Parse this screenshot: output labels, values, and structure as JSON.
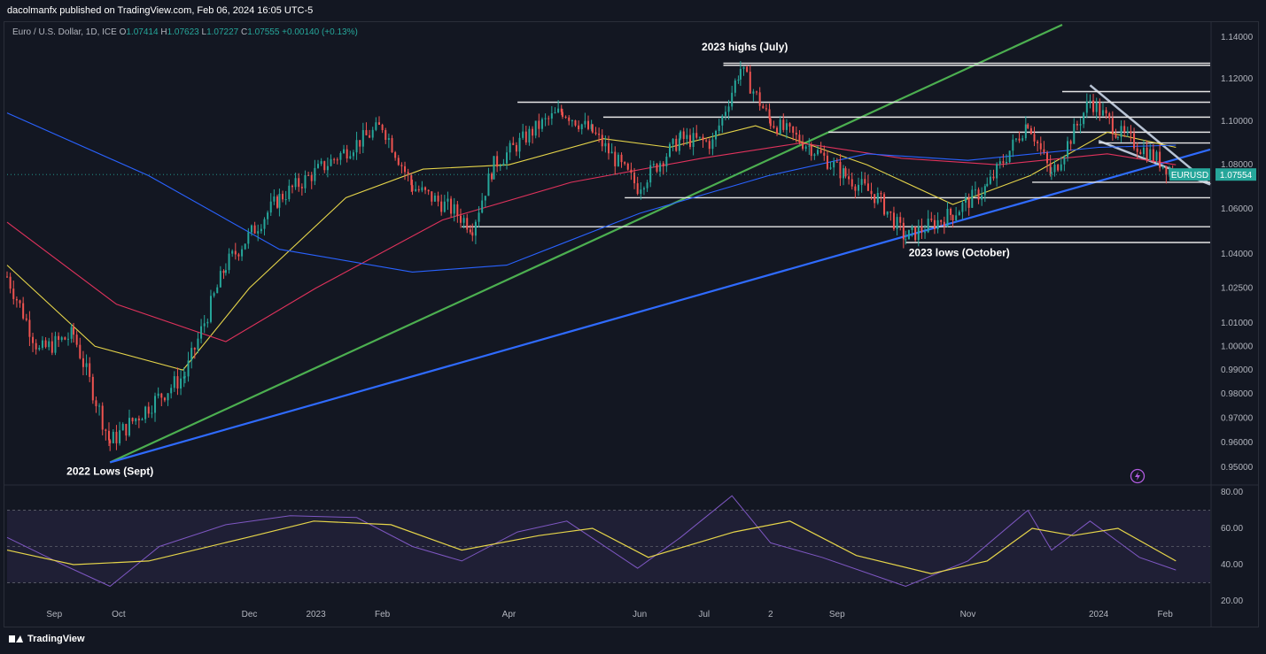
{
  "header": {
    "published": "dacolmanfx published on TradingView.com, Feb 06, 2024 16:05 UTC-5"
  },
  "symbol": {
    "name": "Euro / U.S. Dollar, 1D, ICE",
    "o_label": "O",
    "o_value": "1.07414",
    "h_label": "H",
    "h_value": "1.07623",
    "l_label": "L",
    "l_value": "1.07227",
    "c_label": "C",
    "c_value": "1.07555",
    "change": "+0.00140 (+0.13%)"
  },
  "footer": {
    "brand": "TradingView"
  },
  "colors": {
    "background": "#131722",
    "up": "#26a69a",
    "down": "#ef5350",
    "ma_fast": "#e6d54a",
    "ma_mid": "#e0325c",
    "ma_slow": "#2962ff",
    "rsi": "#7e57c2",
    "rsi_ma": "#e6d54a",
    "trend_green": "#4caf50",
    "trend_blue": "#2f6bff",
    "channel": "#b8c3d4"
  },
  "chart_data": [
    {
      "type": "candlestick",
      "series": [
        {
          "name": "EURUSD",
          "last": 1.07554
        },
        {
          "name": "moving average (yellow)"
        },
        {
          "name": "moving average (red)"
        },
        {
          "name": "moving average (blue)"
        }
      ],
      "price_label": "EURUSD",
      "price_label_value": "1.07554",
      "y_scale": "log",
      "ylim": [
        0.944,
        1.146
      ],
      "y_ticks": [
        "1.14000",
        "1.12000",
        "1.10000",
        "1.08000",
        "1.06000",
        "1.04000",
        "1.02500",
        "1.01000",
        "1.00000",
        "0.99000",
        "0.98000",
        "0.97000",
        "0.96000",
        "0.95000"
      ],
      "x_ticks": [
        "Sep",
        "Oct",
        "Dec",
        "2023",
        "Feb",
        "Apr",
        "Jun",
        "Jul",
        "2",
        "Sep",
        "Nov",
        "2024",
        "Feb"
      ],
      "x_range": [
        "2022-08-10",
        "2024-02-22"
      ],
      "price_path": [
        [
          "2022-08-10",
          1.03
        ],
        [
          "2022-08-25",
          0.998
        ],
        [
          "2022-09-10",
          1.005
        ],
        [
          "2022-09-27",
          0.96
        ],
        [
          "2022-10-15",
          0.975
        ],
        [
          "2022-11-01",
          0.988
        ],
        [
          "2022-11-20",
          1.035
        ],
        [
          "2022-12-15",
          1.065
        ],
        [
          "2023-01-20",
          1.09
        ],
        [
          "2023-02-01",
          1.098
        ],
        [
          "2023-02-15",
          1.07
        ],
        [
          "2023-03-05",
          1.06
        ],
        [
          "2023-03-15",
          1.052
        ],
        [
          "2023-03-25",
          1.08
        ],
        [
          "2023-04-15",
          1.098
        ],
        [
          "2023-04-26",
          1.105
        ],
        [
          "2023-05-10",
          1.095
        ],
        [
          "2023-05-31",
          1.07
        ],
        [
          "2023-06-20",
          1.092
        ],
        [
          "2023-07-05",
          1.09
        ],
        [
          "2023-07-18",
          1.125
        ],
        [
          "2023-08-01",
          1.1
        ],
        [
          "2023-08-20",
          1.088
        ],
        [
          "2023-09-05",
          1.075
        ],
        [
          "2023-09-20",
          1.065
        ],
        [
          "2023-10-03",
          1.047
        ],
        [
          "2023-10-25",
          1.058
        ],
        [
          "2023-11-10",
          1.07
        ],
        [
          "2023-11-29",
          1.1
        ],
        [
          "2023-12-10",
          1.075
        ],
        [
          "2023-12-28",
          1.11
        ],
        [
          "2024-01-10",
          1.095
        ],
        [
          "2024-01-25",
          1.085
        ],
        [
          "2024-02-06",
          1.0755
        ]
      ],
      "moving_averages": [
        {
          "name": "yellow",
          "points": [
            [
              "2022-08-10",
              1.035
            ],
            [
              "2022-09-20",
              1.0
            ],
            [
              "2022-10-31",
              0.99
            ],
            [
              "2022-12-01",
              1.025
            ],
            [
              "2023-01-15",
              1.065
            ],
            [
              "2023-02-20",
              1.078
            ],
            [
              "2023-04-01",
              1.08
            ],
            [
              "2023-05-15",
              1.092
            ],
            [
              "2023-06-15",
              1.088
            ],
            [
              "2023-07-25",
              1.098
            ],
            [
              "2023-09-15",
              1.08
            ],
            [
              "2023-10-25",
              1.062
            ],
            [
              "2023-11-30",
              1.075
            ],
            [
              "2024-01-05",
              1.095
            ],
            [
              "2024-02-06",
              1.088
            ]
          ]
        },
        {
          "name": "red",
          "points": [
            [
              "2022-08-10",
              1.054
            ],
            [
              "2022-09-30",
              1.018
            ],
            [
              "2022-11-20",
              1.002
            ],
            [
              "2023-01-01",
              1.025
            ],
            [
              "2023-03-01",
              1.055
            ],
            [
              "2023-04-30",
              1.072
            ],
            [
              "2023-06-30",
              1.083
            ],
            [
              "2023-08-15",
              1.09
            ],
            [
              "2023-10-01",
              1.083
            ],
            [
              "2023-11-15",
              1.08
            ],
            [
              "2024-01-05",
              1.085
            ],
            [
              "2024-02-06",
              1.08
            ]
          ]
        },
        {
          "name": "blue",
          "points": [
            [
              "2022-08-10",
              1.104
            ],
            [
              "2022-10-15",
              1.075
            ],
            [
              "2022-12-15",
              1.042
            ],
            [
              "2023-02-15",
              1.032
            ],
            [
              "2023-03-31",
              1.035
            ],
            [
              "2023-06-01",
              1.058
            ],
            [
              "2023-07-31",
              1.075
            ],
            [
              "2023-09-15",
              1.085
            ],
            [
              "2023-11-01",
              1.082
            ],
            [
              "2024-01-01",
              1.088
            ],
            [
              "2024-02-06",
              1.089
            ]
          ]
        }
      ],
      "trendlines": [
        {
          "name": "green-support",
          "color": "green",
          "from": [
            "2022-09-27",
            0.952
          ],
          "to": [
            "2023-12-15",
            1.146
          ]
        },
        {
          "name": "blue-support",
          "color": "blue",
          "from": [
            "2022-09-27",
            0.952
          ],
          "to": [
            "2024-02-22",
            1.087
          ]
        },
        {
          "name": "channel-upper",
          "color": "channel",
          "from": [
            "2023-12-28",
            1.117
          ],
          "to": [
            "2024-02-22",
            1.071
          ]
        },
        {
          "name": "channel-lower",
          "color": "channel",
          "from": [
            "2024-01-01",
            1.091
          ],
          "to": [
            "2024-02-22",
            1.071
          ]
        }
      ],
      "horizontal_levels": [
        {
          "price": 1.1275,
          "from": "2023-07-10",
          "to": "2024-02-22"
        },
        {
          "price": 1.1265,
          "from": "2023-07-10",
          "to": "2024-02-22"
        },
        {
          "price": 1.114,
          "from": "2023-12-15",
          "to": "2024-02-22"
        },
        {
          "price": 1.109,
          "from": "2023-04-05",
          "to": "2024-02-22"
        },
        {
          "price": 1.102,
          "from": "2023-05-15",
          "to": "2024-02-22"
        },
        {
          "price": 1.095,
          "from": "2023-08-28",
          "to": "2024-02-22"
        },
        {
          "price": 1.09,
          "from": "2024-01-01",
          "to": "2024-02-22"
        },
        {
          "price": 1.072,
          "from": "2023-12-01",
          "to": "2024-02-22"
        },
        {
          "price": 1.065,
          "from": "2023-05-25",
          "to": "2024-02-22"
        },
        {
          "price": 1.052,
          "from": "2023-03-10",
          "to": "2024-02-22"
        },
        {
          "price": 1.045,
          "from": "2023-10-03",
          "to": "2024-02-22"
        }
      ],
      "annotations": [
        {
          "text": "2023 highs (July)",
          "date": "2023-07-20",
          "price": 1.1335
        },
        {
          "text": "2023 lows (October)",
          "date": "2023-10-28",
          "price": 1.039
        },
        {
          "text": "2022 Lows (Sept)",
          "date": "2022-09-27",
          "price": 0.947
        }
      ]
    },
    {
      "type": "line",
      "name": "RSI",
      "ylim": [
        18,
        82
      ],
      "y_ticks": [
        "80.00",
        "60.00",
        "40.00",
        "20.00"
      ],
      "band": [
        30,
        70
      ],
      "midline": 50,
      "series": [
        {
          "name": "RSI",
          "points": [
            [
              "2022-08-10",
              55
            ],
            [
              "2022-09-05",
              40
            ],
            [
              "2022-09-27",
              28
            ],
            [
              "2022-10-20",
              50
            ],
            [
              "2022-11-20",
              62
            ],
            [
              "2022-12-20",
              67
            ],
            [
              "2023-01-20",
              66
            ],
            [
              "2023-02-15",
              50
            ],
            [
              "2023-03-10",
              42
            ],
            [
              "2023-04-05",
              58
            ],
            [
              "2023-04-28",
              64
            ],
            [
              "2023-05-31",
              38
            ],
            [
              "2023-06-20",
              55
            ],
            [
              "2023-07-14",
              78
            ],
            [
              "2023-08-01",
              52
            ],
            [
              "2023-08-25",
              44
            ],
            [
              "2023-10-03",
              28
            ],
            [
              "2023-11-01",
              42
            ],
            [
              "2023-11-29",
              70
            ],
            [
              "2023-12-10",
              48
            ],
            [
              "2023-12-28",
              64
            ],
            [
              "2024-01-20",
              44
            ],
            [
              "2024-02-06",
              37
            ]
          ]
        },
        {
          "name": "RSI MA",
          "points": [
            [
              "2022-08-10",
              48
            ],
            [
              "2022-09-10",
              40
            ],
            [
              "2022-10-15",
              42
            ],
            [
              "2022-11-30",
              55
            ],
            [
              "2022-12-31",
              64
            ],
            [
              "2023-02-05",
              62
            ],
            [
              "2023-03-10",
              48
            ],
            [
              "2023-04-15",
              56
            ],
            [
              "2023-05-10",
              60
            ],
            [
              "2023-06-05",
              44
            ],
            [
              "2023-07-15",
              58
            ],
            [
              "2023-08-10",
              64
            ],
            [
              "2023-09-10",
              45
            ],
            [
              "2023-10-15",
              35
            ],
            [
              "2023-11-10",
              42
            ],
            [
              "2023-12-01",
              60
            ],
            [
              "2023-12-20",
              56
            ],
            [
              "2024-01-10",
              60
            ],
            [
              "2024-02-06",
              42
            ]
          ]
        }
      ],
      "rsi_label_current": "",
      "time_ticks_shared": true
    }
  ]
}
